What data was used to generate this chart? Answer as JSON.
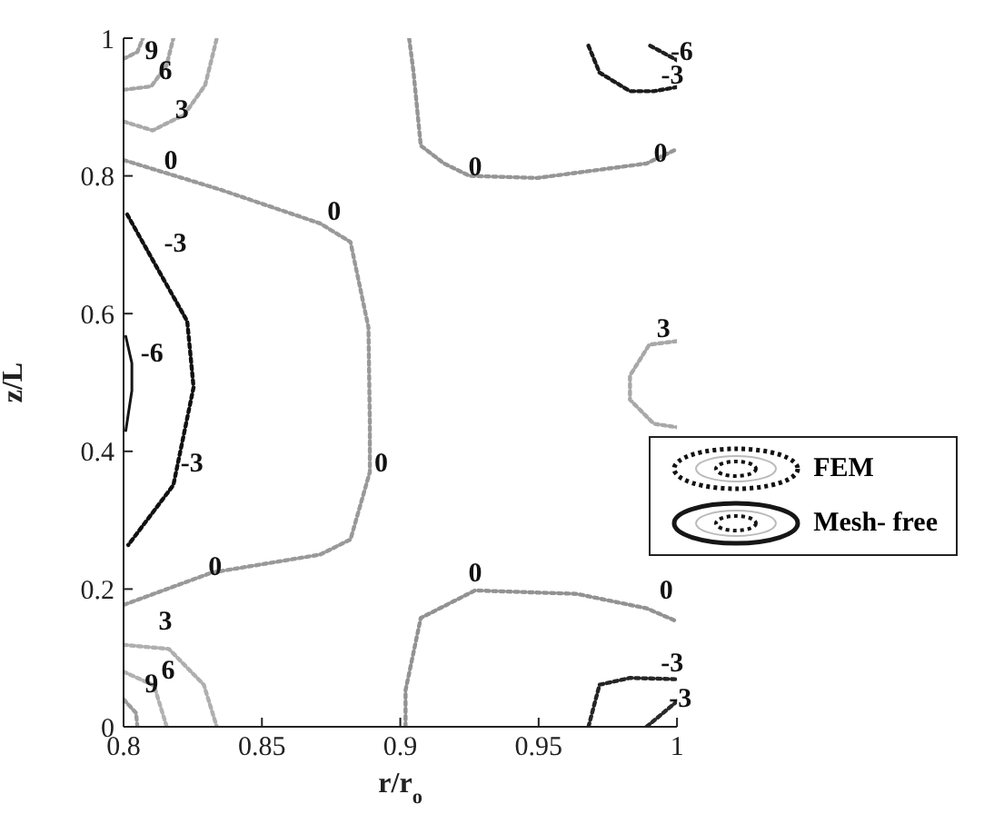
{
  "chart_data": {
    "type": "line",
    "xlabel": "r/r$_{o}$",
    "ylabel": "z/L",
    "xlim": [
      0.8,
      1
    ],
    "xticks": [
      0.8,
      0.85,
      0.9,
      0.95,
      1
    ],
    "ylim": [
      0,
      1
    ],
    "yticks": [
      0,
      0.2,
      0.4,
      0.6,
      0.8,
      1
    ],
    "grid": false,
    "legend": "right",
    "marker": "none",
    "series": [
      {
        "color": "#999999",
        "line_style": "dotted",
        "x": [
          0.8,
          0.835,
          0.871,
          0.882,
          0.8885,
          0.889,
          0.889,
          0.882,
          0.871,
          0.832,
          0.8
        ],
        "values": [
          0.823,
          0.78,
          0.731,
          0.704,
          0.58,
          0.44,
          0.37,
          0.272,
          0.25,
          0.224,
          0.177
        ]
      },
      {
        "name": "FEM",
        "color": "#111111",
        "line_style": "dotted",
        "x": [
          0.8013,
          0.8105,
          0.823,
          0.8253,
          0.818,
          0.8017
        ],
        "values": [
          0.744,
          0.678,
          0.589,
          0.493,
          0.351,
          0.264
        ]
      },
      {
        "name": "Mesh- free",
        "color": "#161616",
        "line_style": "solid",
        "x": [
          0.8008,
          0.803,
          0.803,
          0.8008
        ],
        "values": [
          0.567,
          0.528,
          0.488,
          0.43
        ]
      },
      {
        "color": "#aaaaaa",
        "line_style": "dotted",
        "x": [
          0.8,
          0.8105,
          0.822,
          0.8295,
          0.8337
        ],
        "values": [
          0.879,
          0.866,
          0.889,
          0.932,
          1
        ]
      },
      {
        "color": "#a5a5a5",
        "line_style": "dotted",
        "x": [
          0.8,
          0.81,
          0.8155,
          0.818
        ],
        "values": [
          0.925,
          0.93,
          0.96,
          1
        ]
      },
      {
        "color": "#a0a0a0",
        "line_style": "dotted",
        "x": [
          0.8,
          0.805,
          0.807
        ],
        "values": [
          0.97,
          0.98,
          1
        ]
      },
      {
        "color": "#afafaf",
        "line_style": "dotted",
        "x": [
          0.8,
          0.8164,
          0.829,
          0.8337
        ],
        "values": [
          0.119,
          0.113,
          0.061,
          0
        ]
      },
      {
        "color": "#b2b2b2",
        "line_style": "dotted",
        "x": [
          0.8,
          0.811,
          0.8156
        ],
        "values": [
          0.08,
          0.06,
          0
        ]
      },
      {
        "color": "#9c9c9c",
        "line_style": "dotted",
        "x": [
          0.8,
          0.8045,
          0.805
        ],
        "values": [
          0.04,
          0.02,
          0
        ]
      },
      {
        "color": "#959595",
        "line_style": "dotted",
        "x": [
          0.9032,
          0.9048,
          0.9074,
          0.9158,
          0.925,
          0.9495,
          0.989,
          1
        ],
        "values": [
          1,
          0.95,
          0.844,
          0.818,
          0.8,
          0.797,
          0.818,
          0.839
        ]
      },
      {
        "color": "#1b1b1b",
        "line_style": "dotted",
        "x": [
          0.968,
          0.972,
          0.983,
          0.9916,
          1
        ],
        "values": [
          0.989,
          0.95,
          0.923,
          0.923,
          0.929
        ]
      },
      {
        "color": "#202020",
        "line_style": "dotted",
        "x": [
          0.9903,
          1
        ],
        "values": [
          0.989,
          0.968
        ]
      },
      {
        "color": "#a8a8a8",
        "line_style": "dotted",
        "x": [
          1,
          0.99,
          0.983,
          0.983,
          0.9916,
          1
        ],
        "values": [
          0.56,
          0.555,
          0.51,
          0.475,
          0.44,
          0.435
        ]
      },
      {
        "color": "#929292",
        "line_style": "dotted",
        "x": [
          0.9019,
          0.9019,
          0.9074,
          0.927,
          0.9638,
          0.989,
          1
        ],
        "values": [
          0,
          0.053,
          0.158,
          0.198,
          0.193,
          0.172,
          0.153
        ]
      },
      {
        "color": "#252525",
        "line_style": "dotted",
        "x": [
          0.968,
          0.972,
          0.983,
          1
        ],
        "values": [
          0,
          0.061,
          0.071,
          0.069
        ]
      },
      {
        "color": "#2a2a2a",
        "line_style": "dotted",
        "x": [
          0.989,
          1
        ],
        "values": [
          0,
          0.037
        ]
      }
    ],
    "annotations": [
      {
        "text": "9",
        "x": 0.805,
        "y": 0.98
      },
      {
        "text": "6",
        "x": 0.81,
        "y": 0.93
      },
      {
        "text": "3",
        "x": 0.816,
        "y": 0.873
      },
      {
        "text": "0",
        "x": 0.812,
        "y": 0.8
      },
      {
        "text": "0",
        "x": 0.871,
        "y": 0.725
      },
      {
        "text": "-3",
        "x": 0.812,
        "y": 0.68
      },
      {
        "text": "-6",
        "x": 0.8035,
        "y": 0.52
      },
      {
        "text": "-3",
        "x": 0.818,
        "y": 0.36
      },
      {
        "text": "0",
        "x": 0.888,
        "y": 0.36
      },
      {
        "text": "0",
        "x": 0.828,
        "y": 0.21
      },
      {
        "text": "3",
        "x": 0.81,
        "y": 0.13
      },
      {
        "text": "6",
        "x": 0.811,
        "y": 0.06
      },
      {
        "text": "9",
        "x": 0.805,
        "y": 0.04
      },
      {
        "text": "0",
        "x": 0.922,
        "y": 0.79
      },
      {
        "text": "0",
        "x": 0.989,
        "y": 0.81
      },
      {
        "text": "-6",
        "x": 0.995,
        "y": 0.9785
      },
      {
        "text": "-3",
        "x": 0.9916,
        "y": 0.923
      },
      {
        "text": "3",
        "x": 0.99,
        "y": 0.555
      },
      {
        "text": "0",
        "x": 0.922,
        "y": 0.2
      },
      {
        "text": "0",
        "x": 0.991,
        "y": 0.176
      },
      {
        "text": "-3",
        "x": 0.9915,
        "y": 0.07
      },
      {
        "text": "-3",
        "x": 0.9945,
        "y": 0.0185
      }
    ]
  }
}
